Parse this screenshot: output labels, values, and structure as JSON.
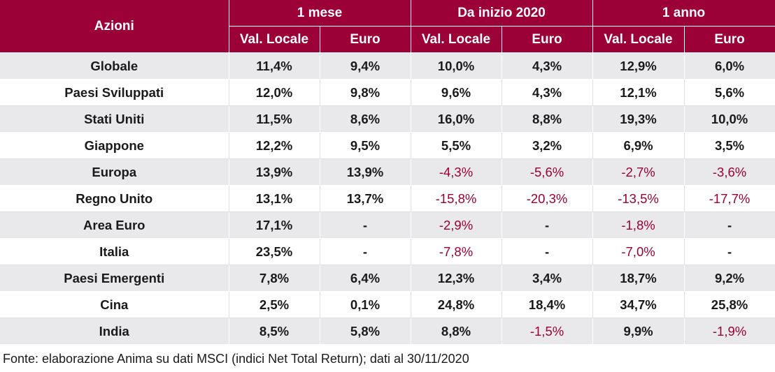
{
  "chart_data": {
    "type": "table",
    "header": {
      "label_column": "Azioni",
      "groups": [
        "1 mese",
        "Da inizio 2020",
        "1 anno"
      ],
      "subcolumns": [
        "Val. Locale",
        "Euro",
        "Val. Locale",
        "Euro",
        "Val. Locale",
        "Euro"
      ]
    },
    "rows": [
      {
        "name": "Globale",
        "values": [
          "11,4%",
          "9,4%",
          "10,0%",
          "4,3%",
          "12,9%",
          "6,0%"
        ]
      },
      {
        "name": "Paesi Sviluppati",
        "values": [
          "12,0%",
          "9,8%",
          "9,6%",
          "4,3%",
          "12,1%",
          "5,6%"
        ]
      },
      {
        "name": "Stati Uniti",
        "values": [
          "11,5%",
          "8,6%",
          "16,0%",
          "8,8%",
          "19,3%",
          "10,0%"
        ]
      },
      {
        "name": "Giappone",
        "values": [
          "12,2%",
          "9,5%",
          "5,5%",
          "3,2%",
          "6,9%",
          "3,5%"
        ]
      },
      {
        "name": "Europa",
        "values": [
          "13,9%",
          "13,9%",
          "-4,3%",
          "-5,6%",
          "-2,7%",
          "-3,6%"
        ]
      },
      {
        "name": "Regno Unito",
        "values": [
          "13,1%",
          "13,7%",
          "-15,8%",
          "-20,3%",
          "-13,5%",
          "-17,7%"
        ]
      },
      {
        "name": "Area Euro",
        "values": [
          "17,1%",
          "-",
          "-2,9%",
          "-",
          "-1,8%",
          "-"
        ]
      },
      {
        "name": "Italia",
        "values": [
          "23,5%",
          "-",
          "-7,8%",
          "-",
          "-7,0%",
          "-"
        ]
      },
      {
        "name": "Paesi Emergenti",
        "values": [
          "7,8%",
          "6,4%",
          "12,3%",
          "3,4%",
          "18,7%",
          "9,2%"
        ]
      },
      {
        "name": "Cina",
        "values": [
          "2,5%",
          "0,1%",
          "24,8%",
          "18,4%",
          "34,7%",
          "25,8%"
        ]
      },
      {
        "name": "India",
        "values": [
          "8,5%",
          "5,8%",
          "8,8%",
          "-1,5%",
          "9,9%",
          "-1,9%"
        ]
      }
    ],
    "source": "Fonte: elaborazione Anima su dati MSCI (indici Net Total Return); dati al 30/11/2020",
    "colors": {
      "header_bg": "#9b0036",
      "negative_text": "#9b0036",
      "stripe": "#e9e9ec"
    }
  }
}
